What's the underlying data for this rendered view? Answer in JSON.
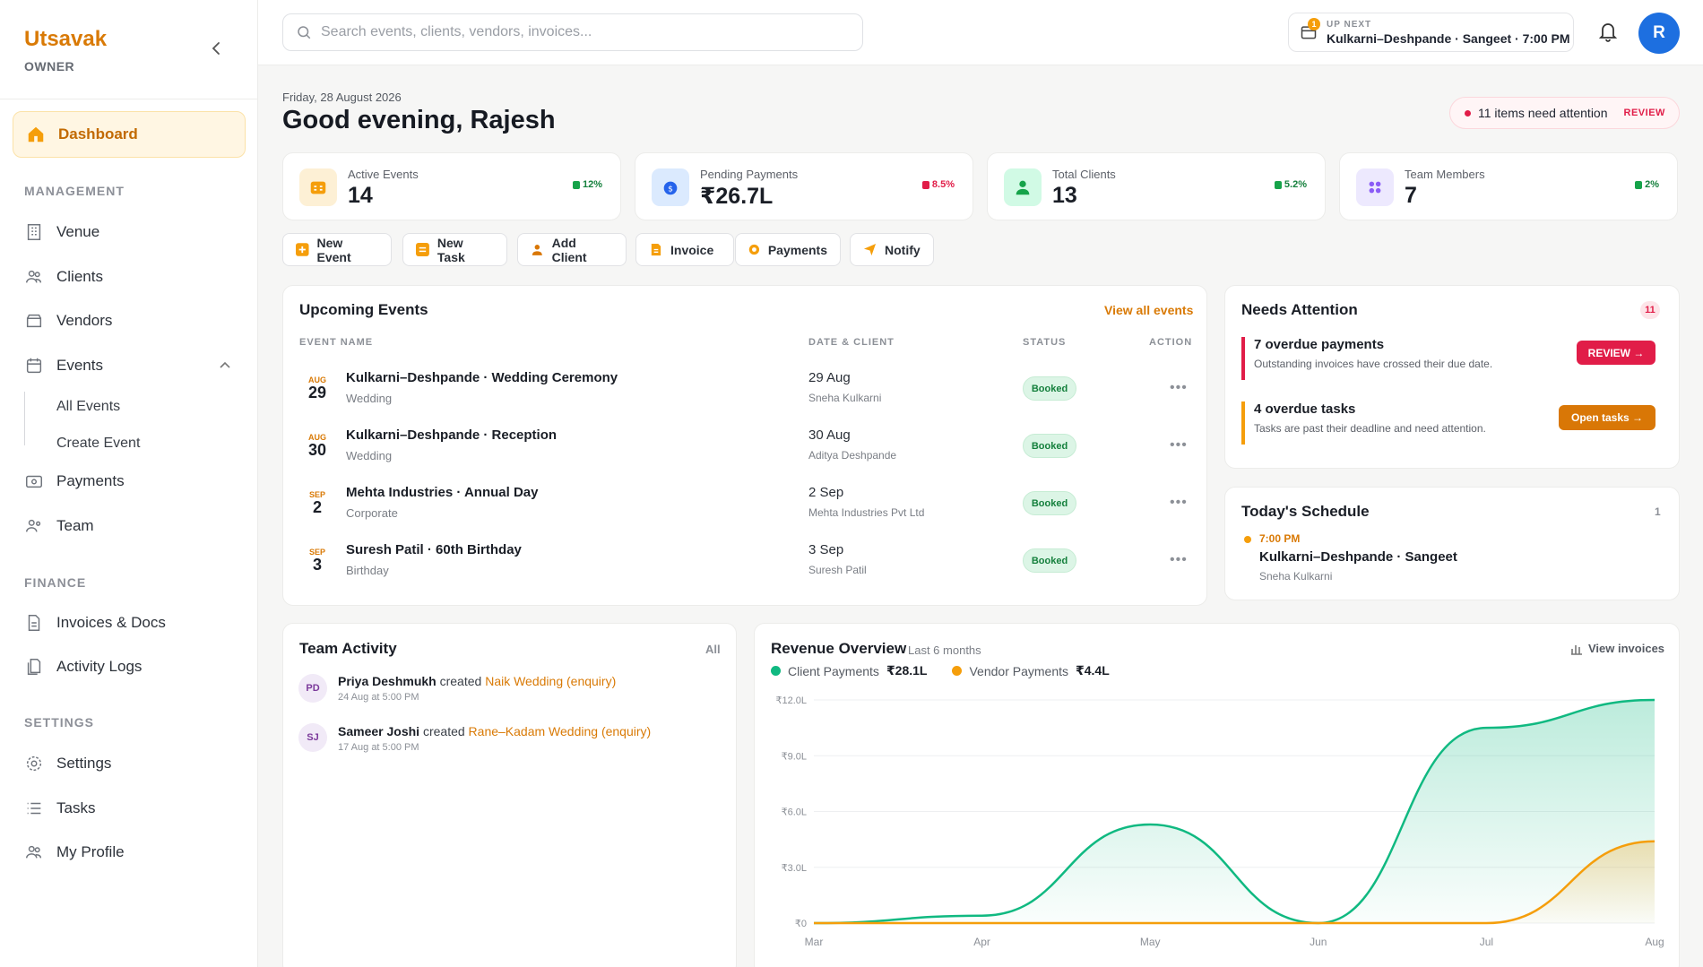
{
  "sidebar": {
    "brand": "Utsavak",
    "role": "OWNER",
    "active": "Dashboard",
    "sections": {
      "management": "MANAGEMENT",
      "finance": "FINANCE",
      "settings": "SETTINGS"
    },
    "items": {
      "venue": "Venue",
      "clients": "Clients",
      "vendors": "Vendors",
      "events": "Events",
      "all_events": "All Events",
      "create_event": "Create Event",
      "payments": "Payments",
      "team": "Team",
      "invoices": "Invoices & Docs",
      "activity": "Activity Logs",
      "settings": "Settings",
      "tasks": "Tasks",
      "profile": "My Profile"
    }
  },
  "topbar": {
    "search_placeholder": "Search events, clients, vendors, invoices...",
    "upnext_label": "UP NEXT",
    "upnext_count": "1",
    "upnext_value": "Kulkarni–Deshpande · Sangeet · 7:00 PM",
    "avatar": "R"
  },
  "header": {
    "date": "Friday, 28 August 2026",
    "greeting": "Good evening, Rajesh",
    "attention": "11 items need attention",
    "attention_action": "REVIEW"
  },
  "stats": [
    {
      "label": "Active Events",
      "value": "14",
      "change": "12%",
      "color": "#d97706"
    },
    {
      "label": "Pending Payments",
      "value": "₹26.7L",
      "change": "8.5%",
      "color": "#e11d48"
    },
    {
      "label": "Total Clients",
      "value": "13",
      "change": "5.2%",
      "color": "#16a34a"
    },
    {
      "label": "Team Members",
      "value": "7",
      "change": "2%",
      "color": "#16a34a"
    }
  ],
  "quick_actions": [
    "New Event",
    "New Task",
    "Add Client",
    "Invoice",
    "Payments",
    "Notify"
  ],
  "upcoming": {
    "title": "Upcoming Events",
    "view_all": "View all events",
    "headers": [
      "EVENT NAME",
      "DATE & CLIENT",
      "STATUS",
      "ACTION"
    ],
    "rows": [
      {
        "month": "AUG",
        "day": "29",
        "name": "Kulkarni–Deshpande · Wedding Ceremony",
        "type": "Wedding",
        "date": "29 Aug",
        "client": "Sneha Kulkarni",
        "status": "Booked"
      },
      {
        "month": "AUG",
        "day": "30",
        "name": "Kulkarni–Deshpande · Reception",
        "type": "Wedding",
        "date": "30 Aug",
        "client": "Aditya Deshpande",
        "status": "Booked"
      },
      {
        "month": "SEP",
        "day": "2",
        "name": "Mehta Industries · Annual Day",
        "type": "Corporate",
        "date": "2 Sep",
        "client": "Mehta Industries Pvt Ltd",
        "status": "Booked"
      },
      {
        "month": "SEP",
        "day": "3",
        "name": "Suresh Patil · 60th Birthday",
        "type": "Birthday",
        "date": "3 Sep",
        "client": "Suresh Patil",
        "status": "Booked"
      }
    ]
  },
  "attention": {
    "title": "Needs Attention",
    "count": "11",
    "items": [
      {
        "title": "7 overdue payments",
        "desc": "Outstanding invoices have crossed their due date.",
        "action": "REVIEW →"
      },
      {
        "title": "4 overdue tasks",
        "desc": "Tasks are past their deadline and need attention.",
        "action": "Open tasks →"
      }
    ]
  },
  "schedule": {
    "title": "Today's Schedule",
    "count": "1",
    "time": "7:00 PM",
    "event": "Kulkarni–Deshpande · Sangeet",
    "client": "Sneha Kulkarni"
  },
  "activity": {
    "title": "Team Activity",
    "all": "All",
    "items": [
      {
        "initials": "PD",
        "name": "Priya Deshmukh",
        "verb": "created",
        "target": "Naik Wedding (enquiry)",
        "time": "24 Aug at 5:00 PM"
      },
      {
        "initials": "SJ",
        "name": "Sameer Joshi",
        "verb": "created",
        "target": "Rane–Kadam Wedding (enquiry)",
        "time": "17 Aug at 5:00 PM"
      }
    ]
  },
  "revenue": {
    "title": "Revenue Overview",
    "subtitle": "Last 6 months",
    "view": "View invoices"
  },
  "chart_data": {
    "type": "area",
    "x": [
      "Mar",
      "Apr",
      "May",
      "Jun",
      "Jul",
      "Aug"
    ],
    "y_ticks": [
      "₹0",
      "₹3.0L",
      "₹6.0L",
      "₹9.0L",
      "₹12.0L"
    ],
    "ylim": [
      0,
      12
    ],
    "series": [
      {
        "name": "Client Payments",
        "total": "₹28.1L",
        "color": "#10b981",
        "values": [
          0,
          0.4,
          5.3,
          0,
          10.5,
          12.0
        ]
      },
      {
        "name": "Vendor Payments",
        "total": "₹4.4L",
        "color": "#f59e0b",
        "values": [
          0,
          0,
          0,
          0,
          0,
          4.4
        ]
      }
    ],
    "legend": "top-left"
  }
}
